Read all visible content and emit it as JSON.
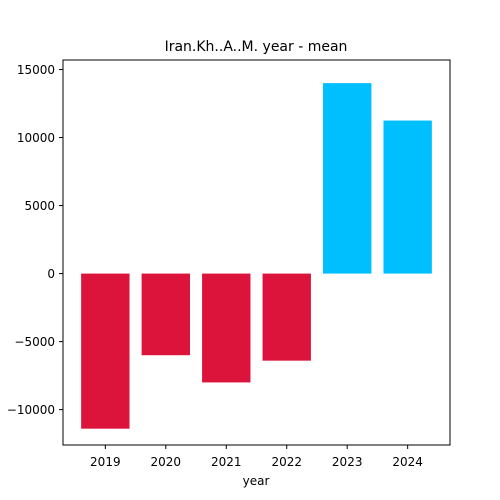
{
  "chart_data": {
    "type": "bar",
    "title": "Iran.Kh..A..M. year - mean",
    "xlabel": "year",
    "ylabel": "",
    "categories": [
      "2019",
      "2020",
      "2021",
      "2022",
      "2023",
      "2024"
    ],
    "values": [
      -11400,
      -6000,
      -8000,
      -6400,
      14000,
      11250
    ],
    "ylim": [
      -12600,
      15700
    ],
    "yticks": [
      -10000,
      -5000,
      0,
      5000,
      10000,
      15000
    ],
    "ytick_labels": [
      "−10000",
      "−5000",
      "0",
      "5000",
      "10000",
      "15000"
    ],
    "grid": false,
    "legend": "none",
    "colors": {
      "negative": "#dc143c",
      "positive": "#00bfff",
      "axis": "#000000"
    }
  }
}
